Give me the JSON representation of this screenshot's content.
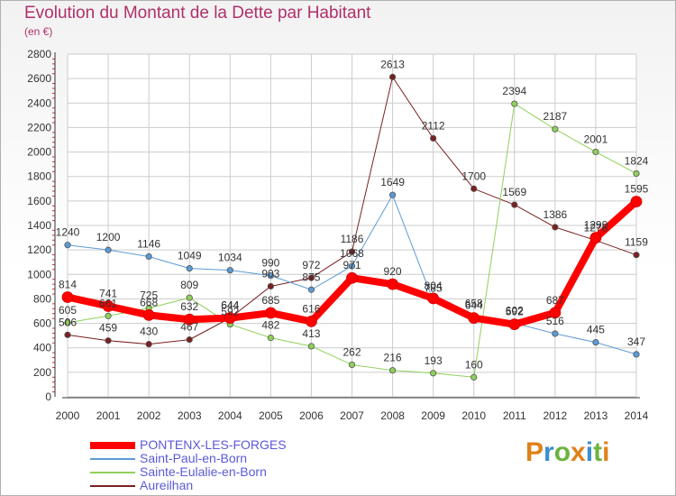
{
  "title": "Evolution du Montant de la Dette par Habitant",
  "subtitle": "(en €)",
  "logo": {
    "text": "Proxiti",
    "colors": [
      "#e0801a",
      "#3a8fd0",
      "#6db33f",
      "#e0801a",
      "#3a8fd0",
      "#6db33f",
      "#e0801a"
    ]
  },
  "chart_data": {
    "type": "line",
    "x": [
      2000,
      2001,
      2002,
      2003,
      2004,
      2005,
      2006,
      2007,
      2008,
      2009,
      2010,
      2011,
      2012,
      2013,
      2014
    ],
    "ylim": [
      0,
      2800
    ],
    "yticks": [
      0,
      200,
      400,
      600,
      800,
      1000,
      1200,
      1400,
      1600,
      1800,
      2000,
      2200,
      2400,
      2600,
      2800
    ],
    "grid": true,
    "legend_position": "bottom-left",
    "series": [
      {
        "name": "Aureilhan",
        "color": "#7a2020",
        "width": 1,
        "values": [
          506,
          459,
          430,
          467,
          644,
          903,
          972,
          1186,
          2613,
          2112,
          1700,
          1569,
          1386,
          1278,
          1159
        ]
      },
      {
        "name": "Sainte-Eulalie-en-Born",
        "color": "#8fd05a",
        "width": 1,
        "values": [
          605,
          661,
          725,
          809,
          592,
          482,
          413,
          262,
          216,
          193,
          160,
          2394,
          2187,
          2001,
          1824
        ]
      },
      {
        "name": "Saint-Paul-en-Born",
        "color": "#5b9bd5",
        "width": 1,
        "values": [
          1240,
          1200,
          1146,
          1049,
          1034,
          990,
          875,
          1068,
          1649,
          785,
          658,
          602,
          516,
          445,
          347
        ]
      },
      {
        "name": "PONTENX-LES-FORGES",
        "color": "#ff0000",
        "width": 8,
        "values": [
          814,
          741,
          668,
          632,
          644,
          685,
          616,
          971,
          920,
          804,
          644,
          592,
          687,
          1299,
          1595
        ]
      }
    ]
  }
}
